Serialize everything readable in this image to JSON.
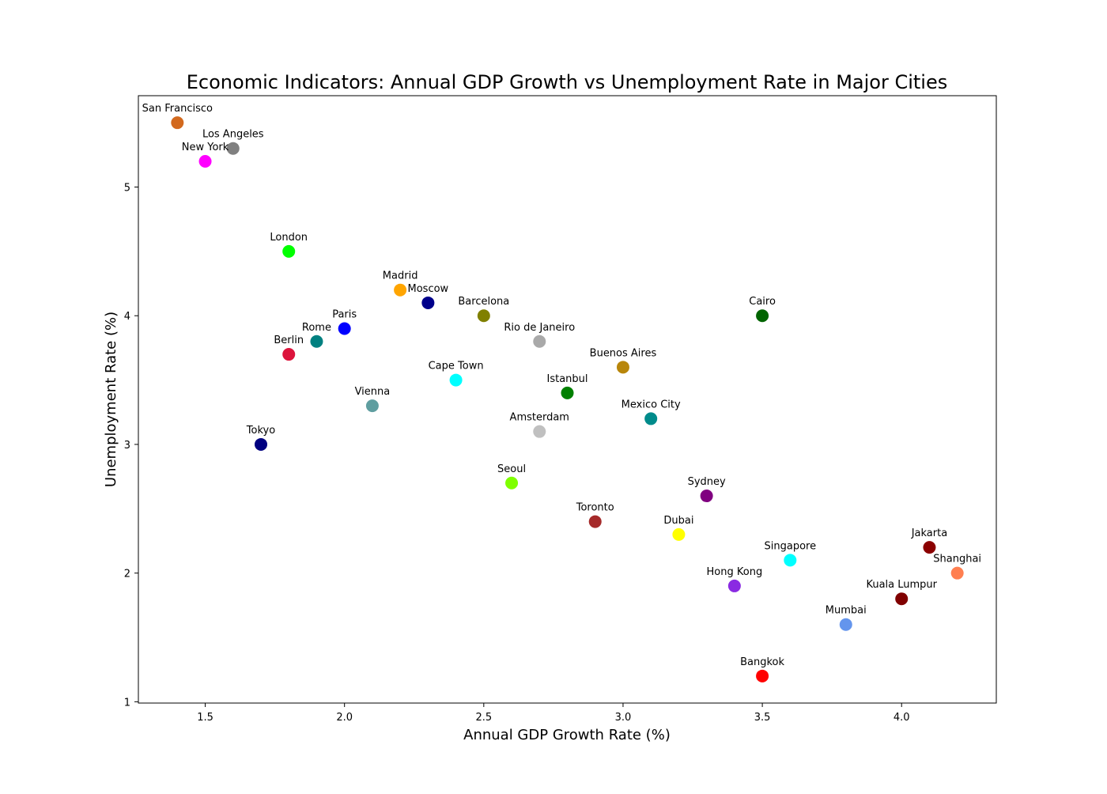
{
  "chart_data": {
    "type": "scatter",
    "title": "Economic Indicators: Annual GDP Growth vs Unemployment Rate in Major Cities",
    "xlabel": "Annual GDP Growth Rate (%)",
    "ylabel": "Unemployment Rate (%)",
    "xlim": [
      1.26,
      4.34
    ],
    "ylim": [
      0.99,
      5.71
    ],
    "xticks": [
      "1.5",
      "2.0",
      "2.5",
      "3.0",
      "3.5",
      "4.0"
    ],
    "yticks": [
      "1",
      "2",
      "3",
      "4",
      "5"
    ],
    "grid": false,
    "points": [
      {
        "label": "San Francisco",
        "x": 1.4,
        "y": 5.5,
        "color": "#d2691e"
      },
      {
        "label": "Los Angeles",
        "x": 1.6,
        "y": 5.3,
        "color": "#808080"
      },
      {
        "label": "New York",
        "x": 1.5,
        "y": 5.2,
        "color": "#ff00ff"
      },
      {
        "label": "London",
        "x": 1.8,
        "y": 4.5,
        "color": "#00ff00"
      },
      {
        "label": "Madrid",
        "x": 2.2,
        "y": 4.2,
        "color": "#ffa500"
      },
      {
        "label": "Moscow",
        "x": 2.3,
        "y": 4.1,
        "color": "#00008b"
      },
      {
        "label": "Barcelona",
        "x": 2.5,
        "y": 4.0,
        "color": "#808000"
      },
      {
        "label": "Cairo",
        "x": 3.5,
        "y": 4.0,
        "color": "#006400"
      },
      {
        "label": "Paris",
        "x": 2.0,
        "y": 3.9,
        "color": "#0000ff"
      },
      {
        "label": "Rome",
        "x": 1.9,
        "y": 3.8,
        "color": "#008080"
      },
      {
        "label": "Rio de Janeiro",
        "x": 2.7,
        "y": 3.8,
        "color": "#a9a9a9"
      },
      {
        "label": "Berlin",
        "x": 1.8,
        "y": 3.7,
        "color": "#dc143c"
      },
      {
        "label": "Buenos Aires",
        "x": 3.0,
        "y": 3.6,
        "color": "#b8860b"
      },
      {
        "label": "Cape Town",
        "x": 2.4,
        "y": 3.5,
        "color": "#00ffff"
      },
      {
        "label": "Istanbul",
        "x": 2.8,
        "y": 3.4,
        "color": "#008000"
      },
      {
        "label": "Vienna",
        "x": 2.1,
        "y": 3.3,
        "color": "#5f9ea0"
      },
      {
        "label": "Mexico City",
        "x": 3.1,
        "y": 3.2,
        "color": "#008b8b"
      },
      {
        "label": "Amsterdam",
        "x": 2.7,
        "y": 3.1,
        "color": "#c0c0c0"
      },
      {
        "label": "Tokyo",
        "x": 1.7,
        "y": 3.0,
        "color": "#000080"
      },
      {
        "label": "Seoul",
        "x": 2.6,
        "y": 2.7,
        "color": "#7fff00"
      },
      {
        "label": "Sydney",
        "x": 3.3,
        "y": 2.6,
        "color": "#800080"
      },
      {
        "label": "Toronto",
        "x": 2.9,
        "y": 2.4,
        "color": "#a52a2a"
      },
      {
        "label": "Dubai",
        "x": 3.2,
        "y": 2.3,
        "color": "#ffff00"
      },
      {
        "label": "Jakarta",
        "x": 4.1,
        "y": 2.2,
        "color": "#8b0000"
      },
      {
        "label": "Singapore",
        "x": 3.6,
        "y": 2.1,
        "color": "#00ffff"
      },
      {
        "label": "Shanghai",
        "x": 4.2,
        "y": 2.0,
        "color": "#ff7f50"
      },
      {
        "label": "Hong Kong",
        "x": 3.4,
        "y": 1.9,
        "color": "#8a2be2"
      },
      {
        "label": "Kuala Lumpur",
        "x": 4.0,
        "y": 1.8,
        "color": "#800000"
      },
      {
        "label": "Mumbai",
        "x": 3.8,
        "y": 1.6,
        "color": "#6495ed"
      },
      {
        "label": "Bangkok",
        "x": 3.5,
        "y": 1.2,
        "color": "#ff0000"
      }
    ]
  }
}
